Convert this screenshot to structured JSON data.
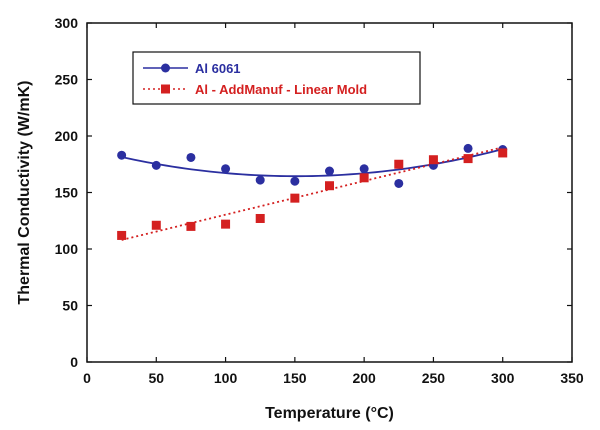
{
  "chart_data": {
    "type": "scatter",
    "title": "",
    "xlabel": "Temperature (°C)",
    "ylabel": "Thermal Conductivity (W/mK)",
    "xlim": [
      0,
      350
    ],
    "ylim": [
      0,
      300
    ],
    "x_ticks": [
      0,
      50,
      100,
      150,
      200,
      250,
      300,
      350
    ],
    "y_ticks": [
      0,
      50,
      100,
      150,
      200,
      250,
      300
    ],
    "grid": false,
    "legend_position": "top-left",
    "series": [
      {
        "name": "Al 6061",
        "color": "#2b2fa0",
        "marker": "circle",
        "line_style": "solid",
        "x": [
          25,
          50,
          75,
          100,
          125,
          150,
          175,
          200,
          225,
          250,
          275,
          300
        ],
        "y": [
          183,
          174,
          181,
          171,
          161,
          160,
          169,
          171,
          158,
          174,
          189,
          188
        ],
        "fit_line": {
          "type": "quadratic",
          "x": [
            25,
            100,
            175,
            250,
            300
          ],
          "y": [
            181,
            168,
            165,
            174,
            189
          ]
        }
      },
      {
        "name": "Al - AddManuf - Linear Mold",
        "color": "#d42020",
        "marker": "square",
        "line_style": "dotted",
        "x": [
          25,
          50,
          75,
          100,
          125,
          150,
          175,
          200,
          225,
          250,
          275,
          300
        ],
        "y": [
          112,
          121,
          120,
          122,
          127,
          145,
          156,
          163,
          175,
          179,
          180,
          185
        ],
        "fit_line": {
          "type": "linear",
          "x": [
            25,
            300
          ],
          "y": [
            108,
            190
          ]
        }
      }
    ]
  }
}
